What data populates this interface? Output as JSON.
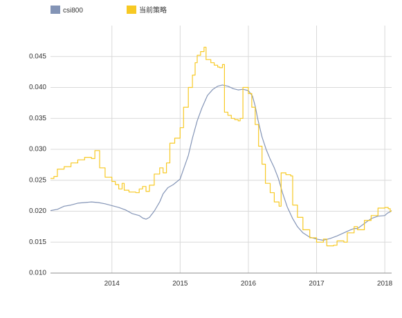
{
  "chart_data": {
    "type": "line",
    "title": "",
    "xlabel": "",
    "ylabel": "",
    "legend": {
      "placement": "top-left",
      "items": [
        {
          "name": "csi800",
          "color": "#8394b6"
        },
        {
          "name": "当前策略",
          "color": "#f7c923"
        }
      ]
    },
    "x_range": [
      2013.1,
      2018.1
    ],
    "ylim": [
      0.01,
      0.05
    ],
    "y_ticks": [
      "0.010",
      "0.015",
      "0.020",
      "0.025",
      "0.030",
      "0.035",
      "0.040",
      "0.045"
    ],
    "y_tick_values": [
      0.01,
      0.015,
      0.02,
      0.025,
      0.03,
      0.035,
      0.04,
      0.045
    ],
    "x_ticks": [
      "2014",
      "2015",
      "2016",
      "2017",
      "2018"
    ],
    "x_tick_values": [
      2014,
      2015,
      2016,
      2017,
      2018
    ],
    "grid": true,
    "series": [
      {
        "name": "csi800",
        "color": "#8394b6",
        "step": false,
        "points": [
          [
            2013.1,
            0.0201
          ],
          [
            2013.2,
            0.0203
          ],
          [
            2013.3,
            0.0208
          ],
          [
            2013.4,
            0.021
          ],
          [
            2013.5,
            0.0213
          ],
          [
            2013.6,
            0.0214
          ],
          [
            2013.7,
            0.0215
          ],
          [
            2013.8,
            0.0214
          ],
          [
            2013.9,
            0.0212
          ],
          [
            2014.0,
            0.0209
          ],
          [
            2014.1,
            0.0206
          ],
          [
            2014.2,
            0.0202
          ],
          [
            2014.3,
            0.0196
          ],
          [
            2014.4,
            0.0193
          ],
          [
            2014.45,
            0.0189
          ],
          [
            2014.5,
            0.0187
          ],
          [
            2014.55,
            0.019
          ],
          [
            2014.62,
            0.02
          ],
          [
            2014.7,
            0.0215
          ],
          [
            2014.75,
            0.0228
          ],
          [
            2014.82,
            0.0238
          ],
          [
            2014.9,
            0.0243
          ],
          [
            2015.0,
            0.0252
          ],
          [
            2015.05,
            0.0268
          ],
          [
            2015.12,
            0.029
          ],
          [
            2015.18,
            0.0318
          ],
          [
            2015.25,
            0.0346
          ],
          [
            2015.32,
            0.0367
          ],
          [
            2015.4,
            0.0387
          ],
          [
            2015.48,
            0.0397
          ],
          [
            2015.55,
            0.0402
          ],
          [
            2015.62,
            0.0404
          ],
          [
            2015.7,
            0.0402
          ],
          [
            2015.78,
            0.0398
          ],
          [
            2015.85,
            0.0396
          ],
          [
            2015.92,
            0.0397
          ],
          [
            2016.0,
            0.0395
          ],
          [
            2016.06,
            0.0386
          ],
          [
            2016.1,
            0.037
          ],
          [
            2016.14,
            0.0348
          ],
          [
            2016.2,
            0.032
          ],
          [
            2016.26,
            0.03
          ],
          [
            2016.32,
            0.0284
          ],
          [
            2016.38,
            0.027
          ],
          [
            2016.44,
            0.0253
          ],
          [
            2016.5,
            0.023
          ],
          [
            2016.57,
            0.0207
          ],
          [
            2016.65,
            0.0188
          ],
          [
            2016.72,
            0.0175
          ],
          [
            2016.8,
            0.0165
          ],
          [
            2016.9,
            0.0158
          ],
          [
            2017.0,
            0.0155
          ],
          [
            2017.1,
            0.0153
          ],
          [
            2017.2,
            0.0156
          ],
          [
            2017.3,
            0.016
          ],
          [
            2017.4,
            0.0165
          ],
          [
            2017.5,
            0.017
          ],
          [
            2017.55,
            0.0172
          ],
          [
            2017.6,
            0.0172
          ],
          [
            2017.7,
            0.018
          ],
          [
            2017.8,
            0.0188
          ],
          [
            2017.9,
            0.0192
          ],
          [
            2018.0,
            0.0193
          ],
          [
            2018.04,
            0.0197
          ],
          [
            2018.08,
            0.0199
          ],
          [
            2018.1,
            0.0201
          ]
        ]
      },
      {
        "name": "当前策略",
        "color": "#f7c923",
        "step": true,
        "points": [
          [
            2013.1,
            0.0253
          ],
          [
            2013.15,
            0.0256
          ],
          [
            2013.2,
            0.0268
          ],
          [
            2013.3,
            0.0272
          ],
          [
            2013.4,
            0.0278
          ],
          [
            2013.5,
            0.0283
          ],
          [
            2013.6,
            0.0287
          ],
          [
            2013.7,
            0.0285
          ],
          [
            2013.75,
            0.0298
          ],
          [
            2013.82,
            0.027
          ],
          [
            2013.9,
            0.0255
          ],
          [
            2014.0,
            0.0248
          ],
          [
            2014.05,
            0.0243
          ],
          [
            2014.1,
            0.0236
          ],
          [
            2014.15,
            0.0245
          ],
          [
            2014.18,
            0.0234
          ],
          [
            2014.25,
            0.0231
          ],
          [
            2014.35,
            0.023
          ],
          [
            2014.4,
            0.0236
          ],
          [
            2014.45,
            0.024
          ],
          [
            2014.5,
            0.0232
          ],
          [
            2014.55,
            0.0242
          ],
          [
            2014.62,
            0.026
          ],
          [
            2014.7,
            0.027
          ],
          [
            2014.75,
            0.0262
          ],
          [
            2014.8,
            0.0278
          ],
          [
            2014.85,
            0.031
          ],
          [
            2014.92,
            0.0318
          ],
          [
            2015.0,
            0.0335
          ],
          [
            2015.05,
            0.0368
          ],
          [
            2015.12,
            0.04
          ],
          [
            2015.18,
            0.042
          ],
          [
            2015.22,
            0.044
          ],
          [
            2015.25,
            0.0452
          ],
          [
            2015.3,
            0.0458
          ],
          [
            2015.35,
            0.0465
          ],
          [
            2015.38,
            0.0445
          ],
          [
            2015.45,
            0.044
          ],
          [
            2015.5,
            0.0436
          ],
          [
            2015.55,
            0.0433
          ],
          [
            2015.58,
            0.0432
          ],
          [
            2015.62,
            0.0437
          ],
          [
            2015.65,
            0.036
          ],
          [
            2015.7,
            0.0355
          ],
          [
            2015.75,
            0.035
          ],
          [
            2015.8,
            0.0348
          ],
          [
            2015.85,
            0.0346
          ],
          [
            2015.88,
            0.035
          ],
          [
            2015.92,
            0.04
          ],
          [
            2016.0,
            0.039
          ],
          [
            2016.05,
            0.0368
          ],
          [
            2016.1,
            0.034
          ],
          [
            2016.15,
            0.0305
          ],
          [
            2016.2,
            0.0276
          ],
          [
            2016.25,
            0.0245
          ],
          [
            2016.32,
            0.023
          ],
          [
            2016.38,
            0.0215
          ],
          [
            2016.45,
            0.0208
          ],
          [
            2016.48,
            0.0262
          ],
          [
            2016.55,
            0.0259
          ],
          [
            2016.62,
            0.0257
          ],
          [
            2016.65,
            0.021
          ],
          [
            2016.72,
            0.019
          ],
          [
            2016.8,
            0.017
          ],
          [
            2016.9,
            0.0157
          ],
          [
            2017.0,
            0.015
          ],
          [
            2017.1,
            0.0155
          ],
          [
            2017.15,
            0.0144
          ],
          [
            2017.25,
            0.0145
          ],
          [
            2017.3,
            0.0152
          ],
          [
            2017.4,
            0.015
          ],
          [
            2017.45,
            0.0165
          ],
          [
            2017.55,
            0.0175
          ],
          [
            2017.6,
            0.017
          ],
          [
            2017.7,
            0.0185
          ],
          [
            2017.8,
            0.0193
          ],
          [
            2017.9,
            0.0205
          ],
          [
            2018.0,
            0.0206
          ],
          [
            2018.05,
            0.0204
          ],
          [
            2018.08,
            0.02
          ],
          [
            2018.1,
            0.02
          ]
        ]
      }
    ]
  }
}
